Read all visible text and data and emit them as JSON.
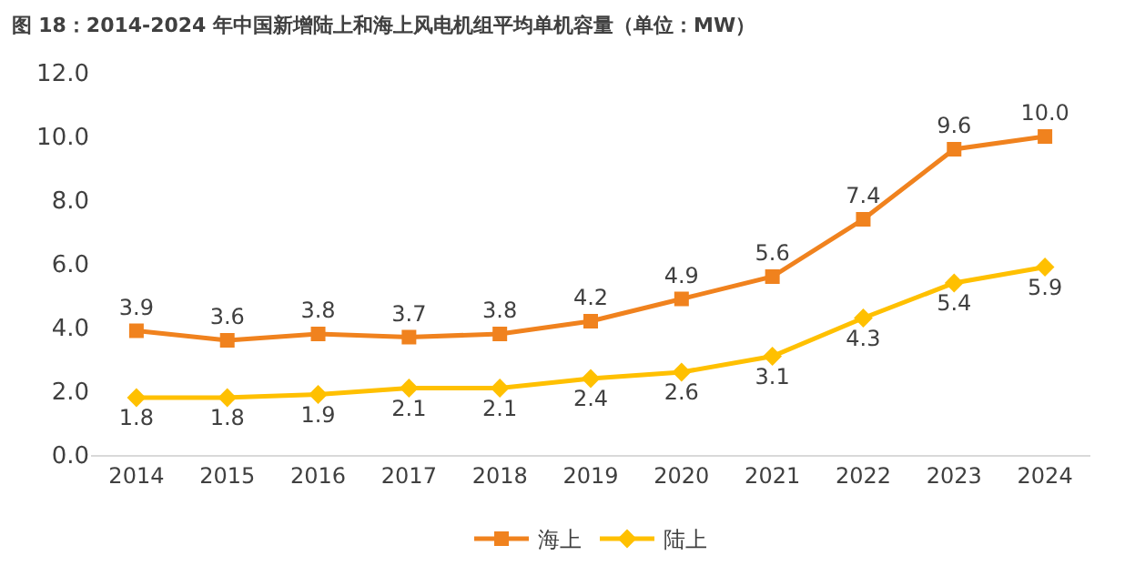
{
  "chart_data": {
    "type": "line",
    "title": "图 18：2014-2024 年中国新增陆上和海上风电机组平均单机容量（单位：MW）",
    "categories": [
      "2014",
      "2015",
      "2016",
      "2017",
      "2018",
      "2019",
      "2020",
      "2021",
      "2022",
      "2023",
      "2024"
    ],
    "series": [
      {
        "name": "海上",
        "color": "#f0821e",
        "marker": "square",
        "values": [
          3.9,
          3.6,
          3.8,
          3.7,
          3.8,
          4.2,
          4.9,
          5.6,
          7.4,
          9.6,
          10.0
        ],
        "value_labels": [
          "3.9",
          "3.6",
          "3.8",
          "3.7",
          "3.8",
          "4.2",
          "4.9",
          "5.6",
          "7.4",
          "9.6",
          "10.0"
        ]
      },
      {
        "name": "陆上",
        "color": "#ffc000",
        "marker": "diamond",
        "values": [
          1.8,
          1.8,
          1.9,
          2.1,
          2.1,
          2.4,
          2.6,
          3.1,
          4.3,
          5.4,
          5.9
        ],
        "value_labels": [
          "1.8",
          "1.8",
          "1.9",
          "2.1",
          "2.1",
          "2.4",
          "2.6",
          "3.1",
          "4.3",
          "5.4",
          "5.9"
        ]
      }
    ],
    "ylim": [
      0,
      12
    ],
    "yticks": [
      {
        "value": 0,
        "label": "0.0"
      },
      {
        "value": 2,
        "label": "2.0"
      },
      {
        "value": 4,
        "label": "4.0"
      },
      {
        "value": 6,
        "label": "6.0"
      },
      {
        "value": 8,
        "label": "8.0"
      },
      {
        "value": 10,
        "label": "10.0"
      },
      {
        "value": 12,
        "label": "12.0"
      }
    ],
    "legend": "bottom",
    "line_style": "solid"
  }
}
